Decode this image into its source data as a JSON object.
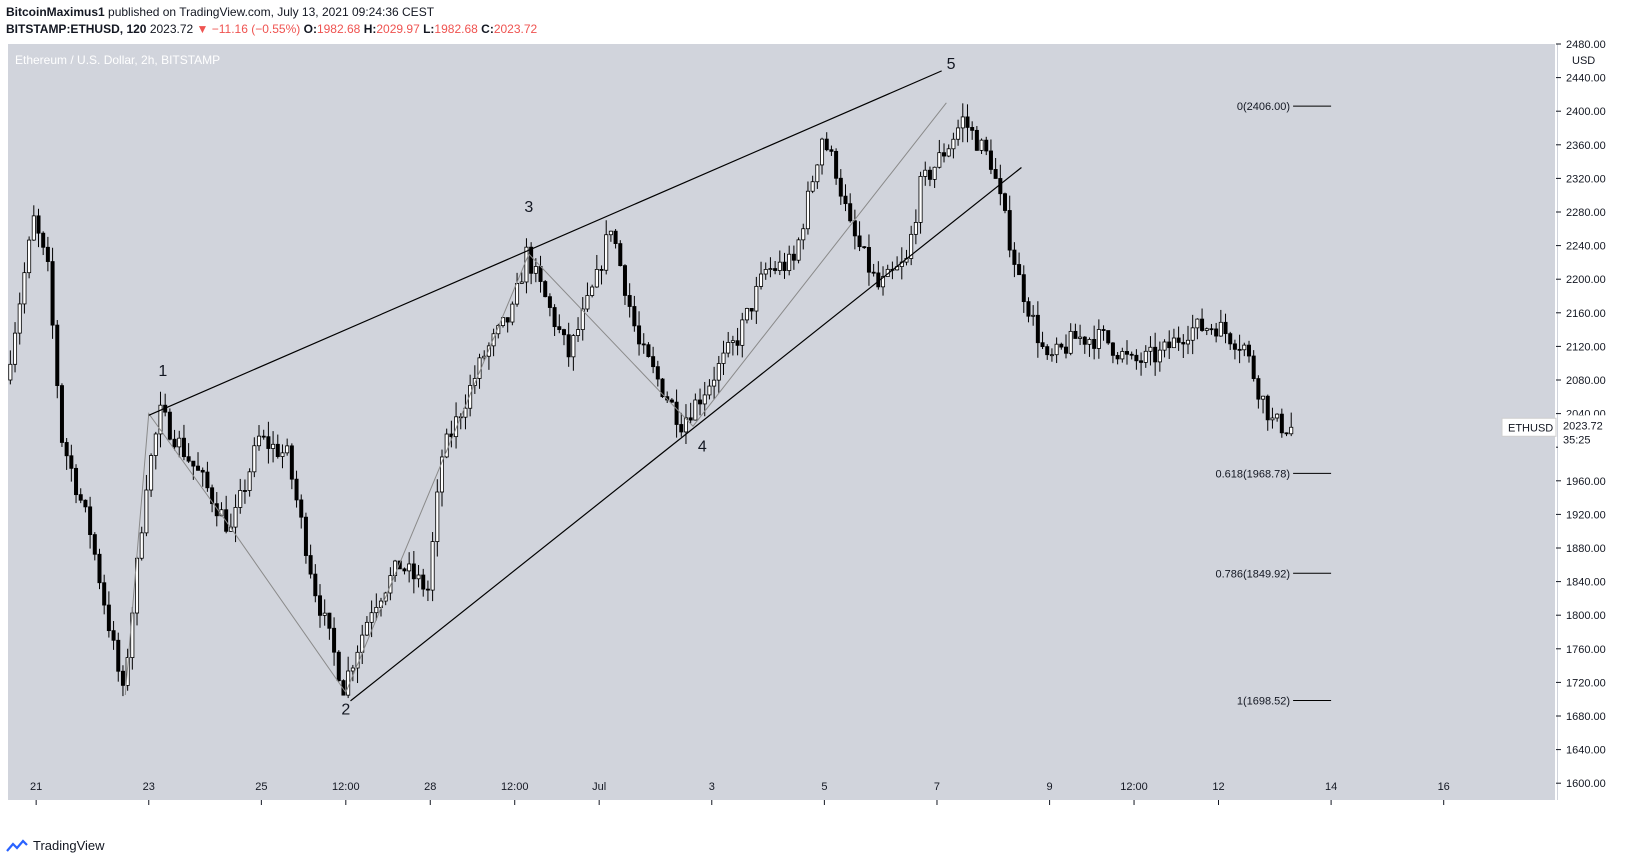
{
  "header": {
    "author": "BitcoinMaximus1",
    "published": " published on TradingView.com, July 13, 2021 09:24:36 CEST",
    "symbol": "BITSTAMP:ETHUSD, 120",
    "last": "2023.72",
    "change": "▼ −11.16 (−0.55%)",
    "o_label": "O:",
    "o_value": "1982.68",
    "h_label": "H:",
    "h_value": "2029.97",
    "l_label": "L:",
    "l_value": "1982.68",
    "c_label": "C:",
    "c_value": "2023.72"
  },
  "footer": {
    "brand": "TradingView"
  },
  "colors": {
    "plot_bg": "#d1d4dc",
    "candle": "#000000",
    "up_body": "#ffffff",
    "down_body": "#000000",
    "line": "#000000",
    "zigzag": "#8a8a8a",
    "accent_red": "#ef5350"
  },
  "chart_data": {
    "type": "candlestick",
    "title": "Ethereum / U.S. Dollar, 2h, BITSTAMP",
    "ylabel": "USD",
    "ylim": [
      1580,
      2480
    ],
    "y_ticks": [
      1600,
      1640,
      1680,
      1720,
      1760,
      1800,
      1840,
      1880,
      1920,
      1960,
      2000,
      2040,
      2080,
      2120,
      2160,
      2200,
      2240,
      2280,
      2320,
      2360,
      2400,
      2440,
      2480
    ],
    "y_tick_labels": [
      "1600.00",
      "1640.00",
      "1680.00",
      "1720.00",
      "1760.00",
      "1800.00",
      "1840.00",
      "1880.00",
      "1920.00",
      "1960.00",
      "2000.00",
      "2040.00",
      "2080.00",
      "2120.00",
      "2160.00",
      "2200.00",
      "2240.00",
      "2280.00",
      "2320.00",
      "2360.00",
      "2400.00",
      "2440.00",
      "2480.00"
    ],
    "x_domain": [
      "2021-06-20T12:00",
      "2021-07-17T00:00"
    ],
    "x_ticks": [
      {
        "label": "21",
        "t": "2021-06-21T00:00"
      },
      {
        "label": "23",
        "t": "2021-06-23T00:00"
      },
      {
        "label": "25",
        "t": "2021-06-25T00:00"
      },
      {
        "label": "12:00",
        "t": "2021-06-26T12:00"
      },
      {
        "label": "28",
        "t": "2021-06-28T00:00"
      },
      {
        "label": "12:00",
        "t": "2021-06-29T12:00"
      },
      {
        "label": "Jul",
        "t": "2021-07-01T00:00"
      },
      {
        "label": "3",
        "t": "2021-07-03T00:00"
      },
      {
        "label": "5",
        "t": "2021-07-05T00:00"
      },
      {
        "label": "7",
        "t": "2021-07-07T00:00"
      },
      {
        "label": "9",
        "t": "2021-07-09T00:00"
      },
      {
        "label": "12:00",
        "t": "2021-07-10T12:00"
      },
      {
        "label": "12",
        "t": "2021-07-12T00:00"
      },
      {
        "label": "14",
        "t": "2021-07-14T00:00"
      },
      {
        "label": "16",
        "t": "2021-07-16T00:00"
      }
    ],
    "bar_hours": 2,
    "series_start": "2021-06-20T12:00",
    "series_end": "2021-07-13T06:00",
    "price_path": [
      [
        "2021-06-20T12:00",
        2080
      ],
      [
        "2021-06-21T00:00",
        2270
      ],
      [
        "2021-06-21T06:00",
        2210
      ],
      [
        "2021-06-21T12:00",
        2010
      ],
      [
        "2021-06-22T00:00",
        1900
      ],
      [
        "2021-06-22T14:00",
        1705
      ],
      [
        "2021-06-23T00:00",
        1960
      ],
      [
        "2021-06-23T06:00",
        2040
      ],
      [
        "2021-06-24T00:00",
        1960
      ],
      [
        "2021-06-24T12:00",
        1900
      ],
      [
        "2021-06-25T00:00",
        2010
      ],
      [
        "2021-06-25T12:00",
        1990
      ],
      [
        "2021-06-26T00:00",
        1830
      ],
      [
        "2021-06-26T12:00",
        1715
      ],
      [
        "2021-06-27T00:00",
        1810
      ],
      [
        "2021-06-27T12:00",
        1860
      ],
      [
        "2021-06-28T00:00",
        1830
      ],
      [
        "2021-06-28T06:00",
        1990
      ],
      [
        "2021-06-29T00:00",
        2110
      ],
      [
        "2021-06-29T12:00",
        2160
      ],
      [
        "2021-06-29T18:00",
        2230
      ],
      [
        "2021-06-30T12:00",
        2110
      ],
      [
        "2021-07-01T00:00",
        2200
      ],
      [
        "2021-07-01T06:00",
        2265
      ],
      [
        "2021-07-01T18:00",
        2120
      ],
      [
        "2021-07-02T12:00",
        2030
      ],
      [
        "2021-07-02T20:00",
        2060
      ],
      [
        "2021-07-03T12:00",
        2130
      ],
      [
        "2021-07-04T00:00",
        2210
      ],
      [
        "2021-07-04T12:00",
        2220
      ],
      [
        "2021-07-05T00:00",
        2370
      ],
      [
        "2021-07-05T06:00",
        2330
      ],
      [
        "2021-07-05T12:00",
        2260
      ],
      [
        "2021-07-06T00:00",
        2190
      ],
      [
        "2021-07-06T12:00",
        2220
      ],
      [
        "2021-07-06T18:00",
        2310
      ],
      [
        "2021-07-07T06:00",
        2360
      ],
      [
        "2021-07-07T12:00",
        2390
      ],
      [
        "2021-07-08T00:00",
        2340
      ],
      [
        "2021-07-08T12:00",
        2200
      ],
      [
        "2021-07-09T00:00",
        2100
      ],
      [
        "2021-07-09T12:00",
        2130
      ],
      [
        "2021-07-10T00:00",
        2130
      ],
      [
        "2021-07-10T12:00",
        2100
      ],
      [
        "2021-07-11T00:00",
        2110
      ],
      [
        "2021-07-11T12:00",
        2140
      ],
      [
        "2021-07-12T00:00",
        2145
      ],
      [
        "2021-07-12T12:00",
        2120
      ],
      [
        "2021-07-12T18:00",
        2070
      ],
      [
        "2021-07-13T00:00",
        2030
      ],
      [
        "2021-07-13T06:00",
        2023.72
      ]
    ],
    "last_price": 2023.72,
    "price_label": "ETHUSD",
    "price_value": "2023.72",
    "countdown": "35:25",
    "wedge_lines": [
      {
        "name": "upper",
        "from": [
          "2021-06-23T00:00",
          2038
        ],
        "to": [
          "2021-07-07T02:00",
          2448
        ]
      },
      {
        "name": "lower",
        "from": [
          "2021-06-26T14:00",
          1698
        ],
        "to": [
          "2021-07-08T12:00",
          2333
        ]
      }
    ],
    "wave_path": [
      [
        "2021-06-22T14:00",
        1705
      ],
      [
        "2021-06-23T00:00",
        2040
      ],
      [
        "2021-06-24T12:00",
        1900
      ],
      [
        "2021-06-26T12:00",
        1708
      ],
      [
        "2021-06-29T18:00",
        2230
      ],
      [
        "2021-07-02T16:00",
        2025
      ],
      [
        "2021-07-07T04:00",
        2410
      ]
    ],
    "wave_labels": [
      {
        "label": "1",
        "t": "2021-06-23T06:00",
        "price": 2085
      },
      {
        "label": "2",
        "t": "2021-06-26T12:00",
        "price": 1682
      },
      {
        "label": "3",
        "t": "2021-06-29T18:00",
        "price": 2280
      },
      {
        "label": "4",
        "t": "2021-07-02T20:00",
        "price": 1995
      },
      {
        "label": "5",
        "t": "2021-07-07T06:00",
        "price": 2450
      }
    ],
    "fib_levels": [
      {
        "ratio": "0",
        "price": 2406.0,
        "label": "0(2406.00)"
      },
      {
        "ratio": "0.618",
        "price": 1968.78,
        "label": "0.618(1968.78)"
      },
      {
        "ratio": "0.786",
        "price": 1849.92,
        "label": "0.786(1849.92)"
      },
      {
        "ratio": "1",
        "price": 1698.52,
        "label": "1(1698.52)"
      }
    ],
    "fib_t_from": "2021-07-14T00:00"
  }
}
